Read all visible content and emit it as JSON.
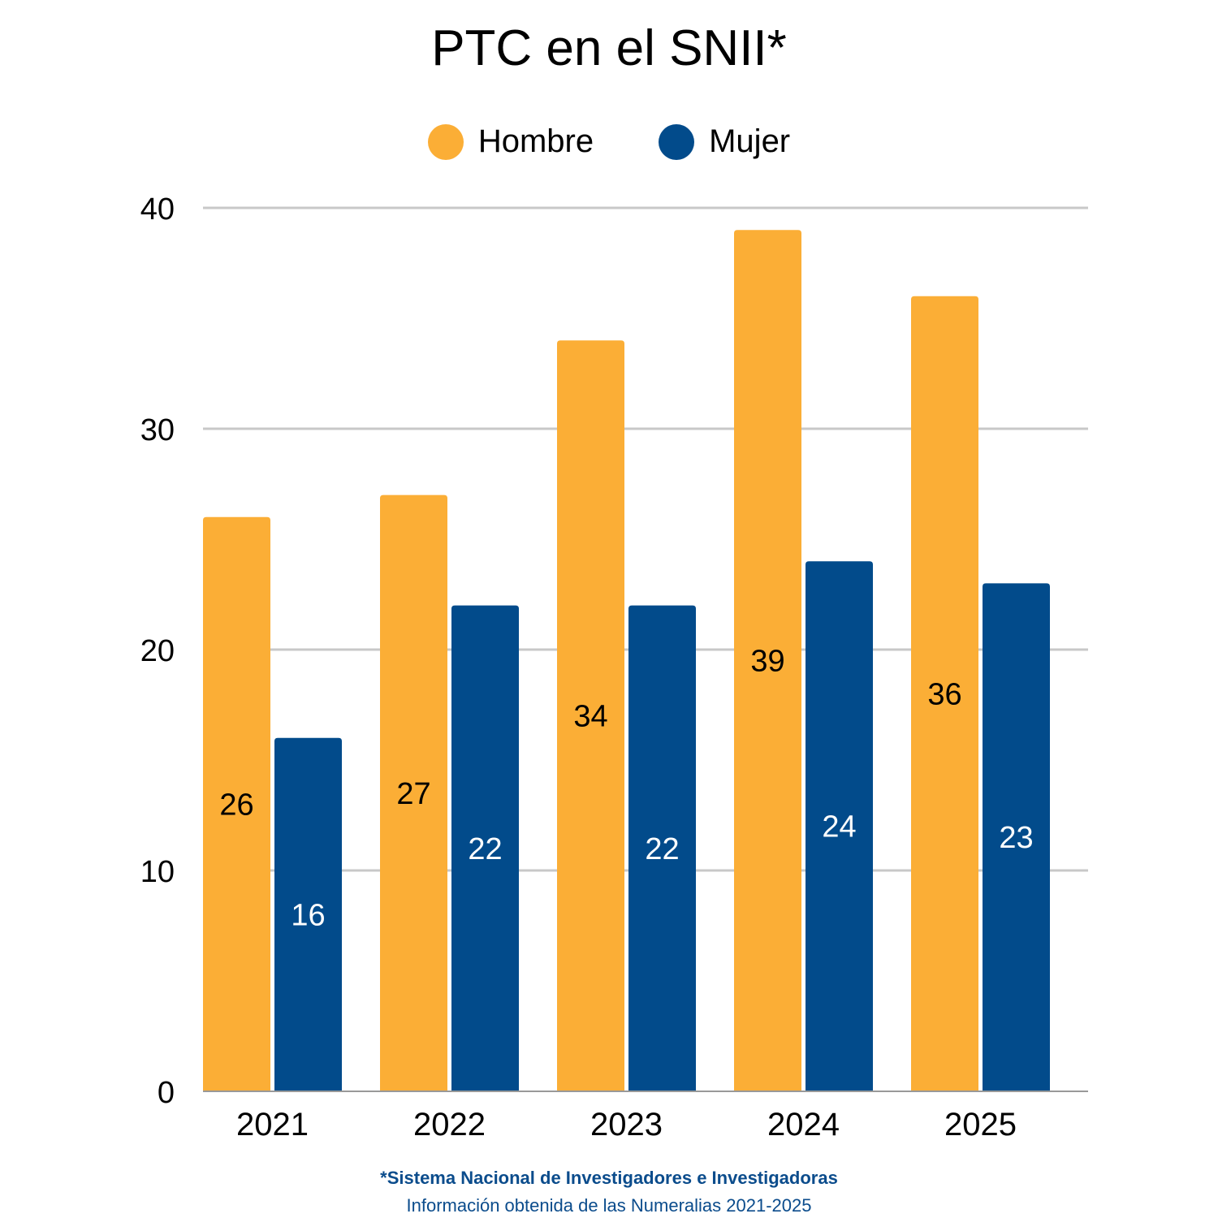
{
  "chart_data": {
    "type": "bar",
    "title": "PTC en el SNII*",
    "categories": [
      "2021",
      "2022",
      "2023",
      "2024",
      "2025"
    ],
    "series": [
      {
        "name": "Hombre",
        "color": "#fbae36",
        "label_color": "#000000",
        "values": [
          26,
          27,
          34,
          39,
          36
        ]
      },
      {
        "name": "Mujer",
        "color": "#024b8b",
        "label_color": "#ffffff",
        "values": [
          16,
          22,
          22,
          24,
          23
        ]
      }
    ],
    "ylim": [
      0,
      40
    ],
    "yticks": [
      0,
      10,
      20,
      30,
      40
    ],
    "grid": true,
    "legend": "top"
  },
  "footer": {
    "note": "*Sistema Nacional de Investigadores e Investigadoras",
    "source": "Información obtenida de las Numeralias 2021-2025"
  }
}
